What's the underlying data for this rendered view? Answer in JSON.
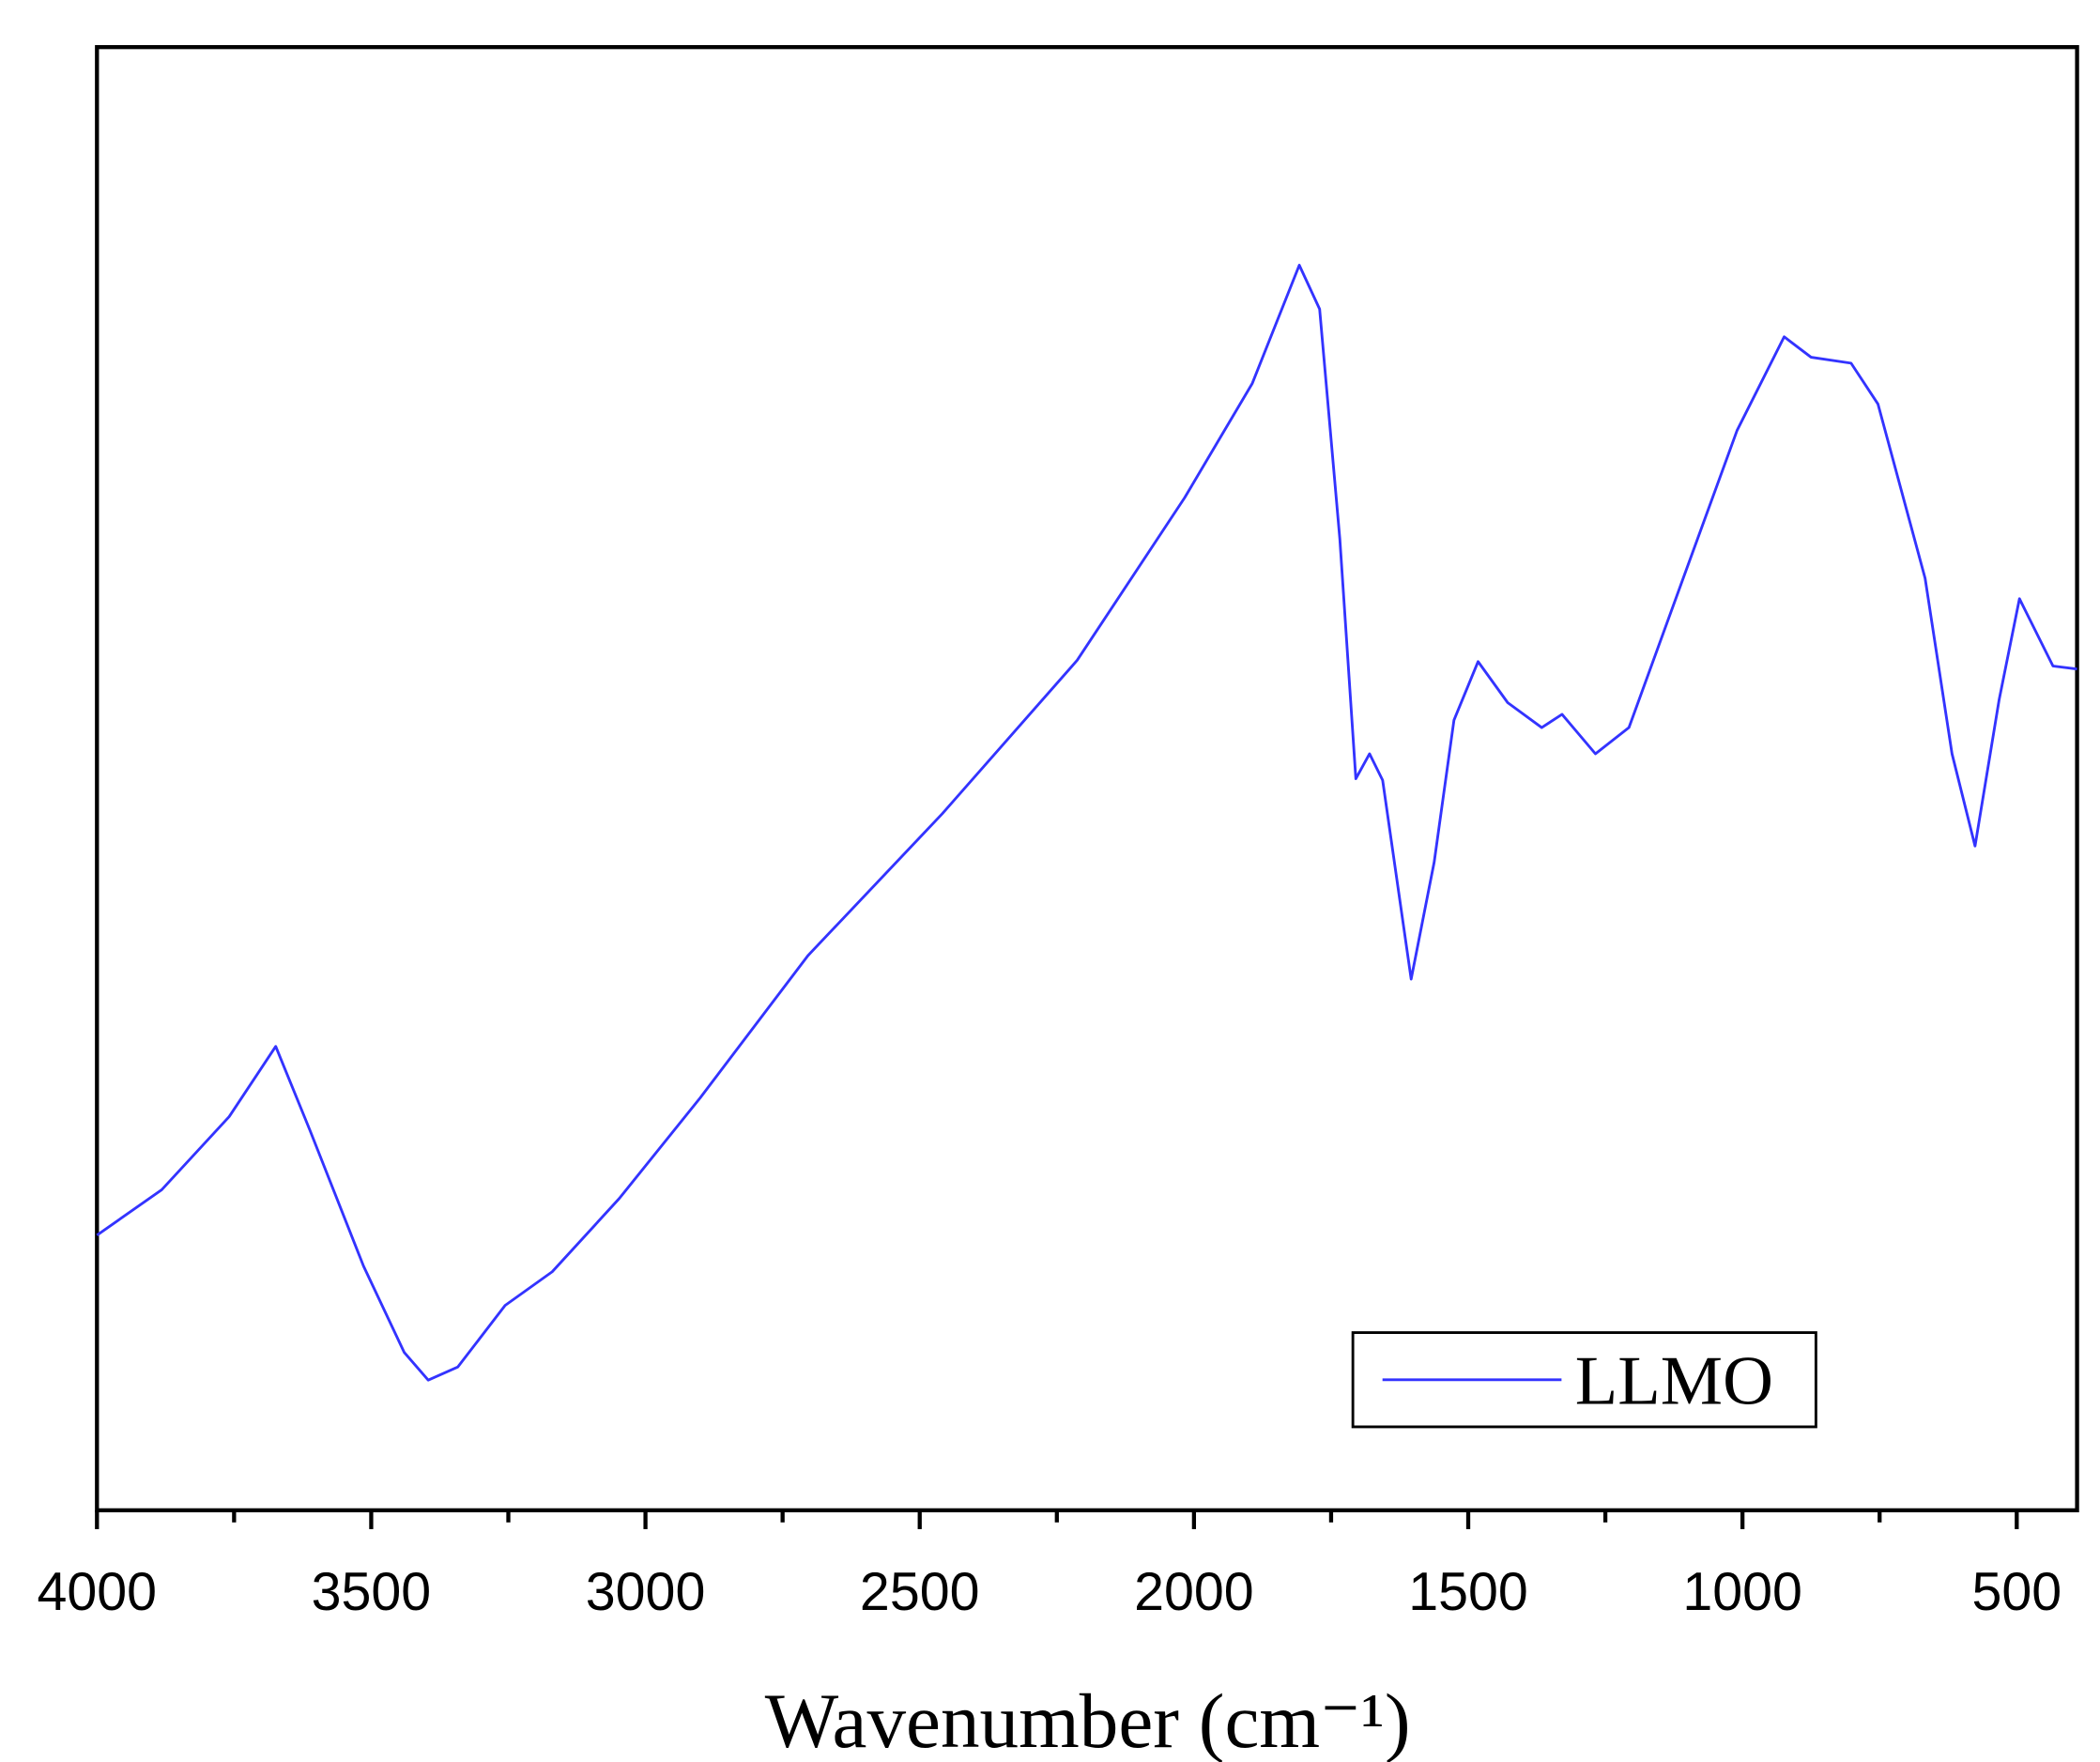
{
  "chart_data": {
    "type": "line",
    "x_label": "Wavenumber (cm⁻¹)",
    "x": [
      4000,
      3882,
      3759,
      3674,
      3612,
      3514,
      3440,
      3396,
      3342,
      3256,
      3170,
      3048,
      2900,
      2704,
      2459,
      2213,
      2017,
      1894,
      1808,
      1771,
      1734,
      1705,
      1680,
      1656,
      1604,
      1562,
      1526,
      1482,
      1428,
      1366,
      1329,
      1268,
      1207,
      1108,
      1010,
      924,
      875,
      802,
      753,
      667,
      618,
      576,
      532,
      495,
      434,
      390
    ],
    "series": [
      {
        "name": "LLMO",
        "color": "#3333ff",
        "values": [
          18.8,
          21.9,
          26.9,
          31.7,
          26.0,
          16.7,
          10.8,
          8.9,
          9.8,
          14.0,
          16.3,
          21.3,
          28.2,
          37.9,
          47.6,
          58.1,
          69.2,
          77.0,
          85.1,
          82.1,
          66.4,
          50.0,
          51.7,
          49.9,
          36.3,
          44.3,
          54.0,
          58.0,
          55.2,
          53.5,
          54.4,
          51.7,
          53.5,
          63.7,
          73.8,
          80.2,
          78.8,
          78.4,
          75.6,
          63.7,
          51.7,
          45.4,
          55.4,
          62.3,
          57.7,
          57.5
        ]
      }
    ],
    "xlim": [
      4000,
      390
    ],
    "ylim": [
      0,
      100
    ],
    "xticks": [
      4000,
      3500,
      3000,
      2500,
      2000,
      1500,
      1000,
      500
    ],
    "xminorticks": [
      3750,
      3250,
      2750,
      2250,
      1750,
      1250,
      750
    ],
    "legend": "lower right"
  }
}
